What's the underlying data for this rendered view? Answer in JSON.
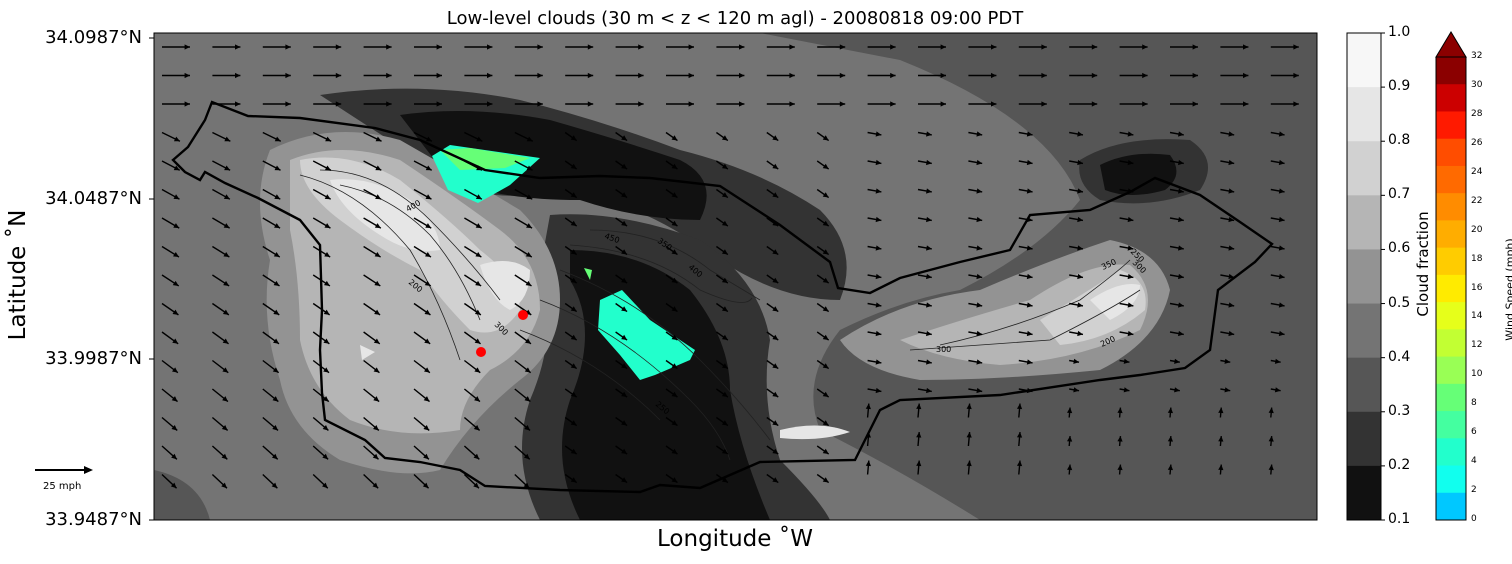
{
  "title": "Low-level clouds (30 m < z < 120 m agl) - 20080818 09:00 PDT",
  "xlabel": "Longitude $^\\circ$W",
  "ylabel": "Latitude $^\\circ$N",
  "xlabel_display": "Longitude ˚W",
  "ylabel_display": "Latitude ˚N",
  "lat_ticks": [
    "34.0987°N",
    "34.0487°N",
    "33.9987°N",
    "33.9487°N"
  ],
  "cloud_colorbar": {
    "label": "Cloud fraction",
    "ticks": [
      "1.0",
      "0.9",
      "0.8",
      "0.7",
      "0.6",
      "0.5",
      "0.4",
      "0.3",
      "0.2",
      "0.1"
    ],
    "colors": [
      "#f7f7f7",
      "#e6e6e6",
      "#d1d1d1",
      "#b5b5b5",
      "#939393",
      "#747474",
      "#565656",
      "#333333",
      "#111111"
    ]
  },
  "wind_colorbar": {
    "label": "Wind Speed (mph)",
    "ticks": [
      "32",
      "30",
      "28",
      "26",
      "24",
      "22",
      "20",
      "18",
      "16",
      "14",
      "12",
      "10",
      "8",
      "6",
      "4",
      "2",
      "0"
    ],
    "colors": [
      "#8b0000",
      "#cc0000",
      "#ff1a00",
      "#ff4d00",
      "#ff6a00",
      "#ff8c00",
      "#ffad00",
      "#ffcc00",
      "#ffeb00",
      "#e6ff1a",
      "#c2ff33",
      "#99ff55",
      "#66ff77",
      "#44ffa0",
      "#22ffcc",
      "#11ffee",
      "#00c8ff"
    ],
    "extend": "max"
  },
  "reference_vector": {
    "label": "25 mph",
    "speed_mph": 25
  },
  "contour_labels": [
    "400",
    "200",
    "300",
    "450",
    "350",
    "400",
    "250",
    "300",
    "350",
    "250",
    "300",
    "200"
  ],
  "map_colors": {
    "coastline": "#000000",
    "marker": "#ff0000",
    "arrows": "#000000"
  },
  "markers_count": 2
}
